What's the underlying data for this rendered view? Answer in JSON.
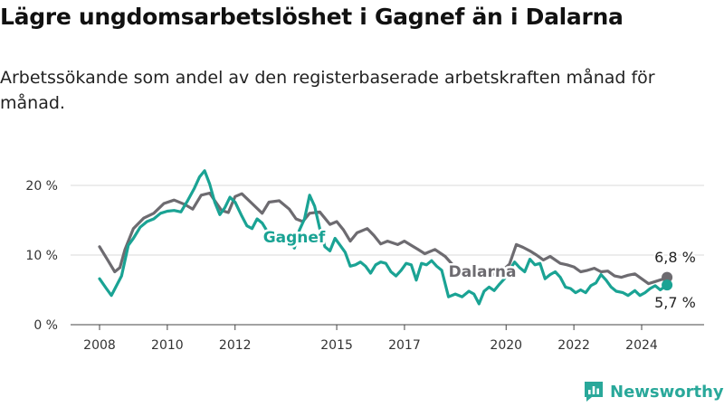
{
  "title": "Lägre ungdomsarbetslöshet i Gagnef än i Dalarna",
  "subtitle": "Arbetssökande som andel av den registerbaserade arbetskraften månad för månad.",
  "brand": "Newsworthy",
  "colors": {
    "gagnef": "#1aa394",
    "dalarna": "#6d6b70",
    "grid": "#d8d8d8",
    "axis": "#555555"
  },
  "chart_data": {
    "type": "line",
    "ylim": [
      0,
      25
    ],
    "yticks": [
      0,
      10,
      20
    ],
    "ytick_labels": [
      "0 %",
      "10 %",
      "20 %"
    ],
    "xlim": [
      2008.0,
      2025.2
    ],
    "xticks": [
      2008,
      2010,
      2012,
      2015,
      2017,
      2020,
      2022,
      2024
    ],
    "xtick_labels": [
      "2008",
      "2010",
      "2012",
      "2015",
      "2017",
      "2020",
      "2022",
      "2024"
    ],
    "grid": true,
    "series": [
      {
        "name": "Dalarna",
        "end_label": "6,8 %",
        "points": [
          [
            2008.0,
            11.2
          ],
          [
            2008.25,
            9.2
          ],
          [
            2008.45,
            7.6
          ],
          [
            2008.6,
            8.2
          ],
          [
            2008.75,
            10.8
          ],
          [
            2009.0,
            13.8
          ],
          [
            2009.3,
            15.3
          ],
          [
            2009.6,
            16.0
          ],
          [
            2009.9,
            17.4
          ],
          [
            2010.2,
            17.9
          ],
          [
            2010.5,
            17.3
          ],
          [
            2010.75,
            16.6
          ],
          [
            2011.0,
            18.6
          ],
          [
            2011.25,
            18.9
          ],
          [
            2011.4,
            17.8
          ],
          [
            2011.6,
            16.4
          ],
          [
            2011.8,
            16.1
          ],
          [
            2012.0,
            18.4
          ],
          [
            2012.2,
            18.8
          ],
          [
            2012.5,
            17.4
          ],
          [
            2012.8,
            16.0
          ],
          [
            2013.0,
            17.6
          ],
          [
            2013.3,
            17.8
          ],
          [
            2013.6,
            16.6
          ],
          [
            2013.8,
            15.2
          ],
          [
            2014.0,
            14.8
          ],
          [
            2014.2,
            16.0
          ],
          [
            2014.5,
            16.2
          ],
          [
            2014.8,
            14.4
          ],
          [
            2015.0,
            14.8
          ],
          [
            2015.2,
            13.6
          ],
          [
            2015.4,
            12.0
          ],
          [
            2015.6,
            13.2
          ],
          [
            2015.9,
            13.8
          ],
          [
            2016.1,
            12.8
          ],
          [
            2016.3,
            11.6
          ],
          [
            2016.5,
            12.0
          ],
          [
            2016.8,
            11.5
          ],
          [
            2017.0,
            12.0
          ],
          [
            2017.2,
            11.4
          ],
          [
            2017.4,
            10.8
          ],
          [
            2017.6,
            10.2
          ],
          [
            2017.9,
            10.8
          ],
          [
            2018.2,
            9.8
          ],
          [
            2018.5,
            8.2
          ],
          [
            2018.8,
            7.2
          ],
          [
            2019.0,
            7.5
          ],
          [
            2019.3,
            7.2
          ],
          [
            2019.5,
            7.9
          ],
          [
            2019.7,
            7.0
          ],
          [
            2019.9,
            7.8
          ],
          [
            2020.1,
            8.7
          ],
          [
            2020.3,
            11.5
          ],
          [
            2020.5,
            11.1
          ],
          [
            2020.7,
            10.6
          ],
          [
            2020.9,
            10.0
          ],
          [
            2021.1,
            9.3
          ],
          [
            2021.3,
            9.8
          ],
          [
            2021.6,
            8.8
          ],
          [
            2021.8,
            8.6
          ],
          [
            2022.0,
            8.3
          ],
          [
            2022.2,
            7.6
          ],
          [
            2022.4,
            7.8
          ],
          [
            2022.6,
            8.1
          ],
          [
            2022.8,
            7.6
          ],
          [
            2023.0,
            7.7
          ],
          [
            2023.2,
            7.0
          ],
          [
            2023.4,
            6.8
          ],
          [
            2023.6,
            7.1
          ],
          [
            2023.8,
            7.3
          ],
          [
            2024.0,
            6.6
          ],
          [
            2024.2,
            5.9
          ],
          [
            2024.4,
            6.2
          ],
          [
            2024.6,
            6.5
          ],
          [
            2024.75,
            6.8
          ]
        ]
      },
      {
        "name": "Gagnef",
        "end_label": "5,7 %",
        "points": [
          [
            2008.0,
            6.6
          ],
          [
            2008.2,
            5.2
          ],
          [
            2008.35,
            4.2
          ],
          [
            2008.5,
            5.6
          ],
          [
            2008.65,
            7.0
          ],
          [
            2008.85,
            11.4
          ],
          [
            2009.0,
            12.4
          ],
          [
            2009.2,
            14.0
          ],
          [
            2009.4,
            14.8
          ],
          [
            2009.6,
            15.2
          ],
          [
            2009.8,
            16.0
          ],
          [
            2010.0,
            16.3
          ],
          [
            2010.2,
            16.4
          ],
          [
            2010.4,
            16.2
          ],
          [
            2010.6,
            17.8
          ],
          [
            2010.8,
            19.6
          ],
          [
            2010.95,
            21.2
          ],
          [
            2011.1,
            22.1
          ],
          [
            2011.25,
            20.2
          ],
          [
            2011.4,
            17.6
          ],
          [
            2011.55,
            15.8
          ],
          [
            2011.7,
            16.8
          ],
          [
            2011.85,
            18.3
          ],
          [
            2012.0,
            17.6
          ],
          [
            2012.2,
            15.6
          ],
          [
            2012.35,
            14.2
          ],
          [
            2012.5,
            13.8
          ],
          [
            2012.65,
            15.2
          ],
          [
            2012.8,
            14.6
          ],
          [
            2012.95,
            13.4
          ],
          [
            2013.1,
            12.2
          ],
          [
            2013.3,
            11.8
          ],
          [
            2013.45,
            12.6
          ],
          [
            2013.6,
            12.2
          ],
          [
            2013.75,
            11.0
          ],
          [
            2013.9,
            13.6
          ],
          [
            2014.05,
            15.2
          ],
          [
            2014.2,
            18.6
          ],
          [
            2014.35,
            17.0
          ],
          [
            2014.5,
            13.8
          ],
          [
            2014.65,
            11.2
          ],
          [
            2014.8,
            10.6
          ],
          [
            2014.95,
            12.4
          ],
          [
            2015.1,
            11.4
          ],
          [
            2015.25,
            10.4
          ],
          [
            2015.4,
            8.4
          ],
          [
            2015.55,
            8.6
          ],
          [
            2015.7,
            9.0
          ],
          [
            2015.85,
            8.4
          ],
          [
            2016.0,
            7.4
          ],
          [
            2016.15,
            8.6
          ],
          [
            2016.3,
            9.0
          ],
          [
            2016.45,
            8.8
          ],
          [
            2016.6,
            7.6
          ],
          [
            2016.75,
            7.0
          ],
          [
            2016.9,
            7.8
          ],
          [
            2017.05,
            8.8
          ],
          [
            2017.2,
            8.6
          ],
          [
            2017.35,
            6.4
          ],
          [
            2017.5,
            8.8
          ],
          [
            2017.65,
            8.6
          ],
          [
            2017.8,
            9.2
          ],
          [
            2017.95,
            8.4
          ],
          [
            2018.1,
            7.8
          ],
          [
            2018.3,
            4.0
          ],
          [
            2018.5,
            4.4
          ],
          [
            2018.7,
            4.0
          ],
          [
            2018.9,
            4.8
          ],
          [
            2019.05,
            4.4
          ],
          [
            2019.2,
            3.0
          ],
          [
            2019.35,
            4.8
          ],
          [
            2019.5,
            5.4
          ],
          [
            2019.65,
            4.9
          ],
          [
            2019.8,
            5.8
          ],
          [
            2019.95,
            6.6
          ],
          [
            2020.1,
            7.8
          ],
          [
            2020.25,
            9.0
          ],
          [
            2020.4,
            8.2
          ],
          [
            2020.55,
            7.6
          ],
          [
            2020.7,
            9.4
          ],
          [
            2020.85,
            8.6
          ],
          [
            2021.0,
            8.8
          ],
          [
            2021.15,
            6.6
          ],
          [
            2021.3,
            7.2
          ],
          [
            2021.45,
            7.6
          ],
          [
            2021.6,
            6.8
          ],
          [
            2021.75,
            5.4
          ],
          [
            2021.9,
            5.2
          ],
          [
            2022.05,
            4.6
          ],
          [
            2022.2,
            5.0
          ],
          [
            2022.35,
            4.6
          ],
          [
            2022.5,
            5.6
          ],
          [
            2022.65,
            6.0
          ],
          [
            2022.8,
            7.2
          ],
          [
            2022.95,
            6.4
          ],
          [
            2023.1,
            5.4
          ],
          [
            2023.25,
            4.8
          ],
          [
            2023.45,
            4.6
          ],
          [
            2023.6,
            4.2
          ],
          [
            2023.8,
            4.9
          ],
          [
            2023.95,
            4.2
          ],
          [
            2024.1,
            4.6
          ],
          [
            2024.25,
            5.2
          ],
          [
            2024.4,
            5.6
          ],
          [
            2024.55,
            5.0
          ],
          [
            2024.75,
            5.7
          ]
        ]
      }
    ]
  }
}
